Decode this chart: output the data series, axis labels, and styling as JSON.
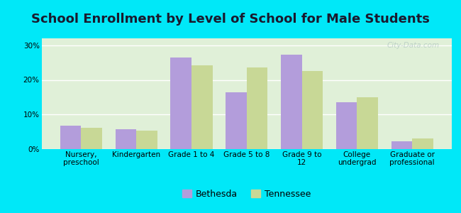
{
  "title": "School Enrollment by Level of School for Male Students",
  "categories": [
    "Nursery,\npreschool",
    "Kindergarten",
    "Grade 1 to 4",
    "Grade 5 to 8",
    "Grade 9 to\n12",
    "College\nundergrad",
    "Graduate or\nprofessional"
  ],
  "bethesda": [
    6.7,
    5.8,
    26.5,
    16.5,
    27.2,
    13.5,
    2.3
  ],
  "tennessee": [
    6.2,
    5.4,
    24.3,
    23.5,
    22.5,
    15.0,
    3.0
  ],
  "bethesda_color": "#b39ddb",
  "tennessee_color": "#c8d896",
  "bar_width": 0.38,
  "ylim": [
    0,
    32
  ],
  "yticks": [
    0,
    10,
    20,
    30
  ],
  "ytick_labels": [
    "0%",
    "10%",
    "20%",
    "30%"
  ],
  "bg_outer": "#00e8f8",
  "bg_inner": "#e0f0d8",
  "grid_color": "#ffffff",
  "title_fontsize": 13,
  "tick_fontsize": 7.5,
  "legend_fontsize": 9,
  "legend_labels": [
    "Bethesda",
    "Tennessee"
  ],
  "watermark": "City-Data.com",
  "title_color": "#1a1a2e"
}
